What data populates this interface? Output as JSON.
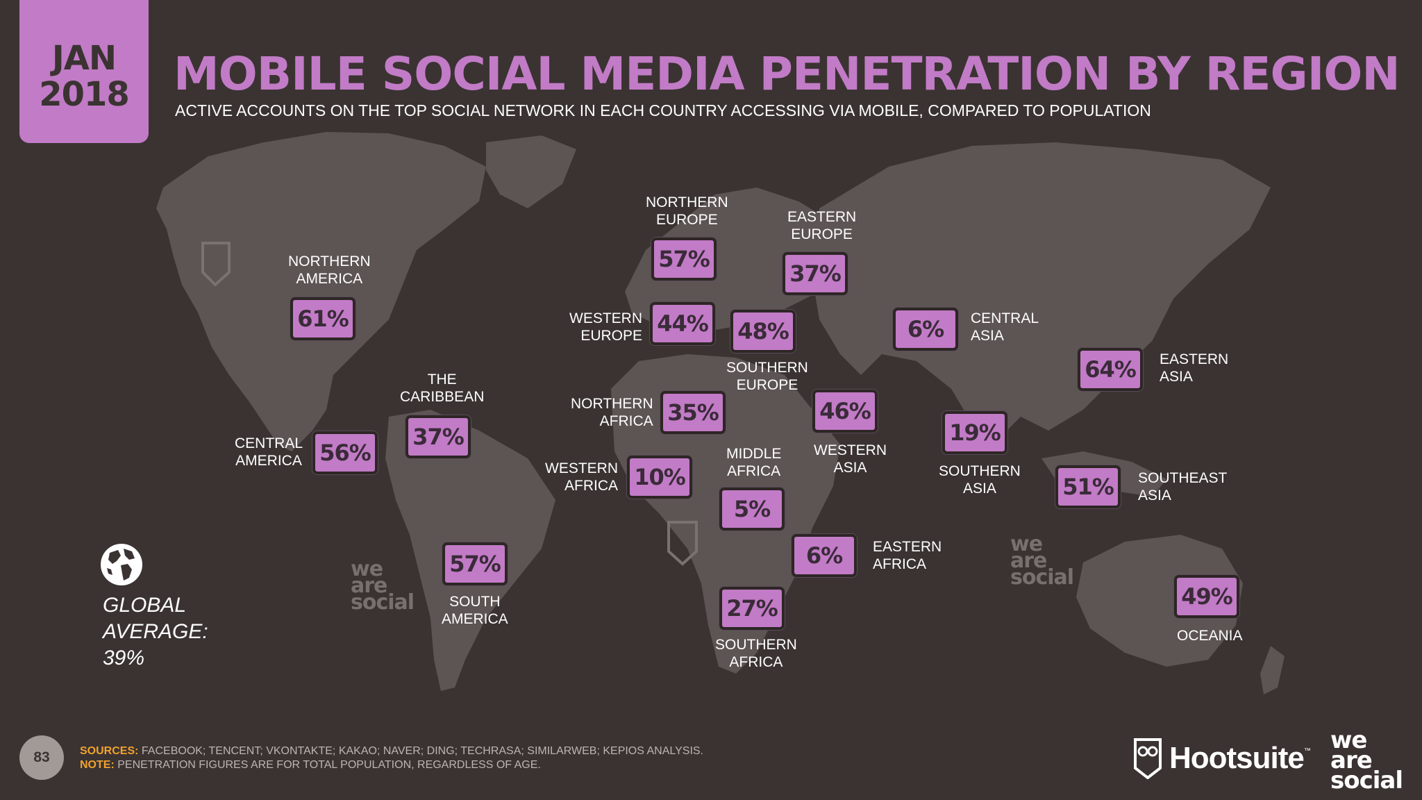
{
  "header": {
    "date_month": "JAN",
    "date_year": "2018",
    "title": "MOBILE SOCIAL MEDIA PENETRATION BY REGION",
    "subtitle": "ACTIVE ACCOUNTS ON THE TOP SOCIAL NETWORK IN EACH COUNTRY ACCESSING VIA MOBILE, COMPARED TO POPULATION"
  },
  "chart_data": {
    "type": "table",
    "regions": [
      {
        "name_line1": "NORTHERN",
        "name_line2": "AMERICA",
        "value": "61%"
      },
      {
        "name_line1": "CENTRAL",
        "name_line2": "AMERICA",
        "value": "56%"
      },
      {
        "name_line1": "THE",
        "name_line2": "CARIBBEAN",
        "value": "37%"
      },
      {
        "name_line1": "SOUTH",
        "name_line2": "AMERICA",
        "value": "57%"
      },
      {
        "name_line1": "NORTHERN",
        "name_line2": "EUROPE",
        "value": "57%"
      },
      {
        "name_line1": "WESTERN",
        "name_line2": "EUROPE",
        "value": "44%"
      },
      {
        "name_line1": "SOUTHERN",
        "name_line2": "EUROPE",
        "value": "48%"
      },
      {
        "name_line1": "EASTERN",
        "name_line2": "EUROPE",
        "value": "37%"
      },
      {
        "name_line1": "NORTHERN",
        "name_line2": "AFRICA",
        "value": "35%"
      },
      {
        "name_line1": "WESTERN",
        "name_line2": "AFRICA",
        "value": "10%"
      },
      {
        "name_line1": "MIDDLE",
        "name_line2": "AFRICA",
        "value": "5%"
      },
      {
        "name_line1": "EASTERN",
        "name_line2": "AFRICA",
        "value": "6%"
      },
      {
        "name_line1": "SOUTHERN",
        "name_line2": "AFRICA",
        "value": "27%"
      },
      {
        "name_line1": "WESTERN",
        "name_line2": "ASIA",
        "value": "46%"
      },
      {
        "name_line1": "CENTRAL",
        "name_line2": "ASIA",
        "value": "6%"
      },
      {
        "name_line1": "SOUTHERN",
        "name_line2": "ASIA",
        "value": "19%"
      },
      {
        "name_line1": "EASTERN",
        "name_line2": "ASIA",
        "value": "64%"
      },
      {
        "name_line1": "SOUTHEAST",
        "name_line2": "ASIA",
        "value": "51%"
      },
      {
        "name_line1": "OCEANIA",
        "name_line2": "",
        "value": "49%"
      }
    ],
    "global_average": {
      "label_line1": "GLOBAL",
      "label_line2": "AVERAGE:",
      "value": "39%"
    }
  },
  "footer": {
    "page_number": "83",
    "sources_label": "SOURCES:",
    "sources_text": "FACEBOOK; TENCENT; VKONTAKTE; KAKAO; NAVER; DING; TECHRASA; SIMILARWEB; KEPIOS ANALYSIS.",
    "note_label": "NOTE:",
    "note_text": "PENETRATION FIGURES ARE FOR TOTAL POPULATION, REGARDLESS OF AGE.",
    "brand_hootsuite": "Hootsuite",
    "brand_tm": "™",
    "brand_was_1": "we",
    "brand_was_2": "are",
    "brand_was_3": "social"
  },
  "colors": {
    "background": "#3a3332",
    "land": "#5d5553",
    "accent": "#c27bc6",
    "footnote_label": "#f2a22e"
  },
  "icons": [
    "globe-icon",
    "hootsuite-owl-icon"
  ]
}
